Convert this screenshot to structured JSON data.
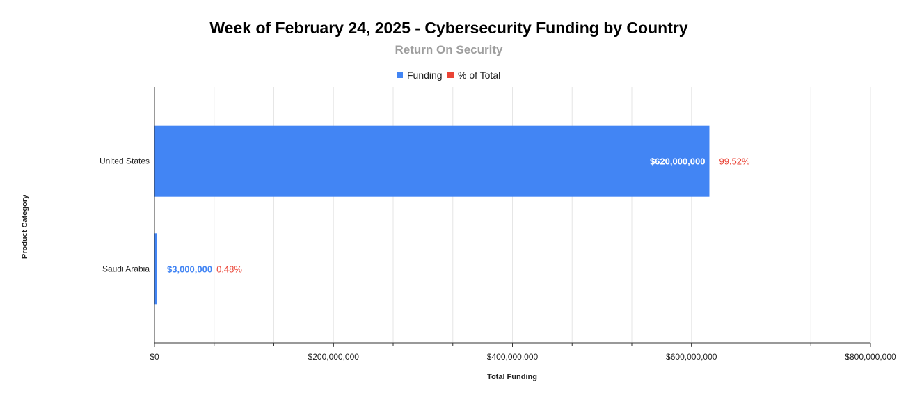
{
  "chart_data": {
    "type": "bar",
    "orientation": "horizontal",
    "title": "Week of February 24, 2025 - Cybersecurity Funding by Country",
    "subtitle": "Return On Security",
    "xlabel": "Total Funding",
    "ylabel": "Product Category",
    "xlim": [
      0,
      800000000
    ],
    "xticks": [
      0,
      200000000,
      400000000,
      600000000,
      800000000
    ],
    "xtick_labels": [
      "$0",
      "$200,000,000",
      "$400,000,000",
      "$600,000,000",
      "$800,000,000"
    ],
    "categories": [
      "United States",
      "Saudi Arabia"
    ],
    "series": [
      {
        "name": "Funding",
        "values": [
          620000000,
          3000000
        ],
        "labels": [
          "$620,000,000",
          "$3,000,000"
        ]
      },
      {
        "name": "% of Total",
        "values": [
          99.52,
          0.48
        ],
        "labels": [
          "99.52%",
          "0.48%"
        ]
      }
    ],
    "legend": [
      "Funding",
      "% of Total"
    ],
    "legend_position": "top-center",
    "grid": true,
    "colors": {
      "funding": "#4285f4",
      "percent": "#ea4335",
      "grid": "#e6e6e6",
      "axis": "#333333",
      "label_inside": "#ffffff"
    }
  }
}
